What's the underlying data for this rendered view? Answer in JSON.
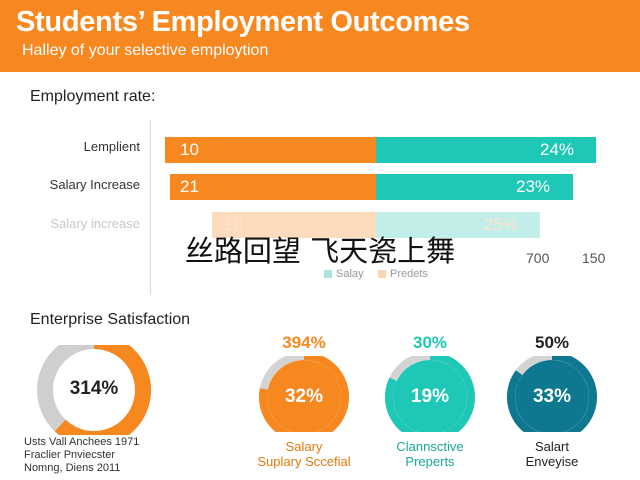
{
  "header": {
    "title": "Students’ Employment Outcomes",
    "subtitle": "Halley of your selective employtion"
  },
  "overlay_text": "丝路回望 飞天瓷上舞",
  "chart_data": [
    {
      "type": "bar",
      "title": "Employment rate:",
      "categories": [
        "Lemplient",
        "Salary Increase",
        "Salary increase"
      ],
      "series": [
        {
          "values": [
            "10",
            "21",
            "18"
          ],
          "color": "#f7881f"
        },
        {
          "values": [
            "24%",
            "23%",
            "25%"
          ],
          "color": "#1fc7b6"
        }
      ],
      "ticks": [
        "700",
        "150"
      ],
      "legend": [
        {
          "label": "Salay",
          "color": "#a8e6df"
        },
        {
          "label": "Predets",
          "color": "#fdd4ae"
        }
      ],
      "faded_rows": [
        2
      ]
    },
    {
      "type": "pie",
      "title": "Enterprise Satisfaction",
      "items": [
        {
          "top": "",
          "center": "314%",
          "fill": 0.62,
          "color": "#f7881f",
          "track": "#cfcfcf",
          "label_lines": []
        },
        {
          "top": "394%",
          "center": "32%",
          "fill": 0.78,
          "color": "#f7881f",
          "track": "#d3d3d3",
          "label_lines": [
            "Salary",
            "Suplary Sccefial"
          ],
          "label_color": "#e07a0c"
        },
        {
          "top": "30%",
          "center": "19%",
          "fill": 0.82,
          "color": "#1fc7b6",
          "track": "#d3d3d3",
          "label_lines": [
            "Clannsctive",
            "Preperts"
          ],
          "label_color": "#17a89a"
        },
        {
          "top": "50%",
          "center": "33%",
          "fill": 0.85,
          "color": "#0f7891",
          "track": "#d3d3d3",
          "label_lines": [
            "Salart",
            "Enveyise"
          ],
          "label_color": "#222222"
        }
      ],
      "footnote": [
        "Usts Vall Anchees 1971",
        "Fraclier Pnviecster",
        "Nomng, Diens 2011"
      ]
    }
  ]
}
